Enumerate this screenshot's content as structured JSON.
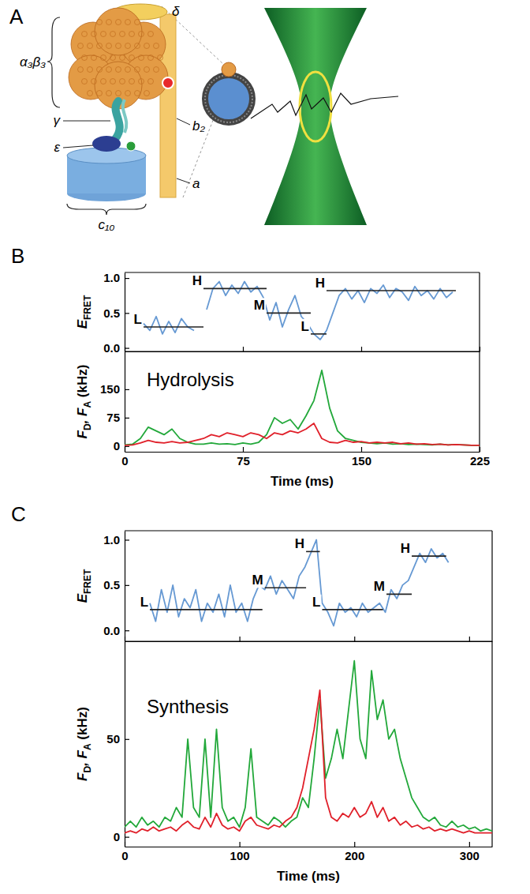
{
  "diagram": {
    "letter": "A",
    "labels": {
      "delta": "δ",
      "alpha_beta": "α₃β₃",
      "gamma": "γ",
      "epsilon": "ε",
      "b": "b₂",
      "a": "a",
      "c": "c₁₀"
    }
  },
  "chart_data": [
    {
      "type": "line",
      "panel": "B",
      "x": [
        12,
        16,
        20,
        24,
        28,
        32,
        36,
        40,
        44,
        48,
        52,
        56,
        60,
        64,
        68,
        72,
        76,
        80,
        84,
        88,
        92,
        96,
        100,
        104,
        108,
        112,
        116,
        120,
        124,
        128,
        132,
        136,
        140,
        144,
        148,
        152,
        156,
        160,
        164,
        168,
        172,
        176,
        180,
        184,
        188,
        192,
        196,
        200,
        204,
        208
      ],
      "values": [
        0.35,
        0.25,
        0.45,
        0.2,
        0.38,
        0.22,
        0.42,
        0.3,
        0.25,
        null,
        0.55,
        0.85,
        0.95,
        0.75,
        0.9,
        0.78,
        0.95,
        0.8,
        0.88,
        0.72,
        0.4,
        0.65,
        0.3,
        0.55,
        0.75,
        0.45,
        0.35,
        0.2,
        0.12,
        0.25,
        0.5,
        0.75,
        0.85,
        0.7,
        0.82,
        0.65,
        0.85,
        0.78,
        0.9,
        0.72,
        0.85,
        0.8,
        0.68,
        0.88,
        0.75,
        0.82,
        0.7,
        0.85,
        0.72,
        0.8
      ],
      "color": "#6699d3",
      "xlim": [
        0,
        225
      ],
      "xticks": [
        0,
        75,
        150,
        225
      ],
      "ylim": [
        -0.05,
        1.08
      ],
      "yticks": [
        {
          "value": 0,
          "label": "0.0"
        },
        {
          "value": 0.5,
          "label": "0.5"
        },
        {
          "value": 1,
          "label": "1.0"
        }
      ],
      "y_label": [
        {
          "text": "E"
        },
        {
          "text": "FRET",
          "sub": true
        }
      ],
      "tick_labels": "y",
      "levels": [
        {
          "label": "L",
          "x": [
            12,
            50
          ],
          "y": 0.3
        },
        {
          "label": "H",
          "x": [
            50,
            90
          ],
          "y": 0.85
        },
        {
          "label": "M",
          "x": [
            90,
            118
          ],
          "y": 0.5
        },
        {
          "label": "L",
          "x": [
            118,
            128
          ],
          "y": 0.2
        },
        {
          "label": "H",
          "x": [
            128,
            210
          ],
          "y": 0.82
        }
      ]
    },
    {
      "type": "line",
      "x": [
        0,
        5,
        10,
        15,
        20,
        25,
        30,
        35,
        40,
        45,
        50,
        55,
        60,
        65,
        70,
        75,
        80,
        85,
        90,
        95,
        100,
        105,
        110,
        115,
        120,
        125,
        130,
        135,
        140,
        145,
        150,
        155,
        160,
        165,
        170,
        175,
        180,
        185,
        190,
        195,
        200,
        205,
        210,
        215,
        220,
        225
      ],
      "series": [
        {
          "color": "#22a83a",
          "values": [
            3,
            5,
            20,
            50,
            40,
            30,
            45,
            20,
            10,
            5,
            5,
            8,
            5,
            6,
            4,
            8,
            5,
            10,
            30,
            75,
            60,
            70,
            45,
            80,
            120,
            200,
            100,
            40,
            20,
            15,
            10,
            8,
            6,
            8,
            5,
            6,
            4,
            5,
            4,
            3,
            5,
            3,
            4,
            3,
            2,
            2
          ]
        },
        {
          "color": "#e0202a",
          "values": [
            2,
            3,
            8,
            15,
            10,
            8,
            12,
            8,
            10,
            15,
            20,
            30,
            25,
            35,
            30,
            25,
            35,
            30,
            20,
            35,
            30,
            40,
            35,
            45,
            60,
            20,
            10,
            8,
            15,
            10,
            12,
            8,
            10,
            8,
            10,
            6,
            8,
            5,
            6,
            4,
            5,
            3,
            4,
            3,
            2,
            2
          ]
        }
      ],
      "xlim": [
        0,
        225
      ],
      "xticks": [
        0,
        75,
        150,
        225
      ],
      "ylim": [
        -15,
        250
      ],
      "yticks": [
        0,
        75,
        150
      ],
      "x_label": "Time (ms)",
      "y_label": [
        {
          "text": "F"
        },
        {
          "text": "D",
          "sub": true
        },
        {
          "text": ", F"
        },
        {
          "text": "A",
          "sub": true
        },
        {
          "text": " (kHz)"
        }
      ],
      "annotation": "Hydrolysis"
    },
    {
      "type": "line",
      "panel": "C",
      "x": [
        22,
        27,
        32,
        37,
        42,
        47,
        52,
        57,
        62,
        67,
        72,
        77,
        82,
        87,
        92,
        97,
        102,
        107,
        112,
        117,
        122,
        127,
        132,
        137,
        142,
        147,
        152,
        157,
        162,
        167,
        172,
        177,
        182,
        187,
        192,
        197,
        202,
        207,
        212,
        217,
        222,
        227,
        232,
        237,
        242,
        247,
        252,
        257,
        262,
        267,
        272,
        277,
        282
      ],
      "values": [
        0.3,
        0.1,
        0.45,
        0.2,
        0.5,
        0.15,
        0.35,
        0.25,
        0.45,
        0.1,
        0.3,
        0.2,
        0.4,
        0.15,
        0.5,
        0.2,
        0.3,
        0.1,
        0.35,
        0.5,
        0.45,
        0.6,
        0.4,
        0.55,
        0.45,
        0.35,
        0.6,
        0.7,
        0.85,
        1.0,
        0.3,
        0.2,
        0.05,
        0.3,
        0.2,
        0.25,
        0.15,
        0.3,
        0.2,
        0.25,
        0.3,
        0.2,
        0.45,
        0.35,
        0.5,
        0.55,
        0.7,
        0.85,
        0.75,
        0.9,
        0.8,
        0.85,
        0.75
      ],
      "color": "#6699d3",
      "xlim": [
        0,
        320
      ],
      "xticks": [
        0,
        100,
        200,
        300
      ],
      "ylim": [
        -0.12,
        1.1
      ],
      "yticks": [
        {
          "value": 0,
          "label": "0.0"
        },
        {
          "value": 0.5,
          "label": "0.5"
        },
        {
          "value": 1,
          "label": "1.0"
        }
      ],
      "y_label": [
        {
          "text": "E"
        },
        {
          "text": "FRET",
          "sub": true
        }
      ],
      "tick_labels": "y",
      "levels": [
        {
          "label": "L",
          "x": [
            22,
            120
          ],
          "y": 0.23
        },
        {
          "label": "M",
          "x": [
            122,
            158
          ],
          "y": 0.47
        },
        {
          "label": "H",
          "x": [
            158,
            170
          ],
          "y": 0.87
        },
        {
          "label": "L",
          "x": [
            172,
            225
          ],
          "y": 0.23
        },
        {
          "label": "M",
          "x": [
            228,
            250
          ],
          "y": 0.4
        },
        {
          "label": "H",
          "x": [
            250,
            280
          ],
          "y": 0.82
        }
      ]
    },
    {
      "type": "line",
      "x": [
        0,
        5,
        10,
        15,
        20,
        25,
        30,
        35,
        40,
        45,
        50,
        55,
        60,
        65,
        70,
        75,
        80,
        85,
        90,
        95,
        100,
        105,
        110,
        115,
        120,
        125,
        130,
        135,
        140,
        145,
        150,
        155,
        160,
        165,
        170,
        175,
        180,
        185,
        190,
        195,
        200,
        205,
        210,
        215,
        220,
        225,
        230,
        235,
        240,
        245,
        250,
        255,
        260,
        265,
        270,
        275,
        280,
        285,
        290,
        295,
        300,
        305,
        310,
        315,
        320
      ],
      "series": [
        {
          "color": "#22a83a",
          "values": [
            5,
            8,
            5,
            10,
            6,
            8,
            5,
            10,
            8,
            15,
            10,
            50,
            15,
            10,
            50,
            10,
            55,
            15,
            8,
            10,
            5,
            15,
            45,
            10,
            8,
            6,
            10,
            8,
            5,
            8,
            10,
            20,
            15,
            40,
            70,
            30,
            40,
            55,
            40,
            65,
            90,
            50,
            40,
            85,
            60,
            70,
            50,
            55,
            40,
            30,
            20,
            15,
            10,
            8,
            10,
            6,
            5,
            8,
            5,
            6,
            4,
            5,
            3,
            4,
            3
          ]
        },
        {
          "color": "#e0202a",
          "values": [
            2,
            3,
            2,
            4,
            3,
            5,
            3,
            4,
            5,
            3,
            6,
            8,
            5,
            4,
            10,
            5,
            12,
            6,
            4,
            5,
            3,
            8,
            10,
            6,
            5,
            4,
            6,
            5,
            8,
            10,
            15,
            25,
            40,
            55,
            75,
            20,
            10,
            8,
            12,
            10,
            15,
            10,
            12,
            18,
            10,
            15,
            8,
            10,
            6,
            8,
            5,
            6,
            4,
            5,
            3,
            4,
            3,
            4,
            3,
            2,
            3,
            2,
            2,
            2,
            2
          ]
        }
      ],
      "xlim": [
        0,
        320
      ],
      "xticks": [
        0,
        100,
        200,
        300
      ],
      "ylim": [
        -5,
        100
      ],
      "yticks": [
        0,
        50
      ],
      "x_label": "Time (ms)",
      "y_label": [
        {
          "text": "F"
        },
        {
          "text": "D",
          "sub": true
        },
        {
          "text": ", F"
        },
        {
          "text": "A",
          "sub": true
        },
        {
          "text": " (kHz)"
        }
      ],
      "annotation": "Synthesis"
    }
  ]
}
